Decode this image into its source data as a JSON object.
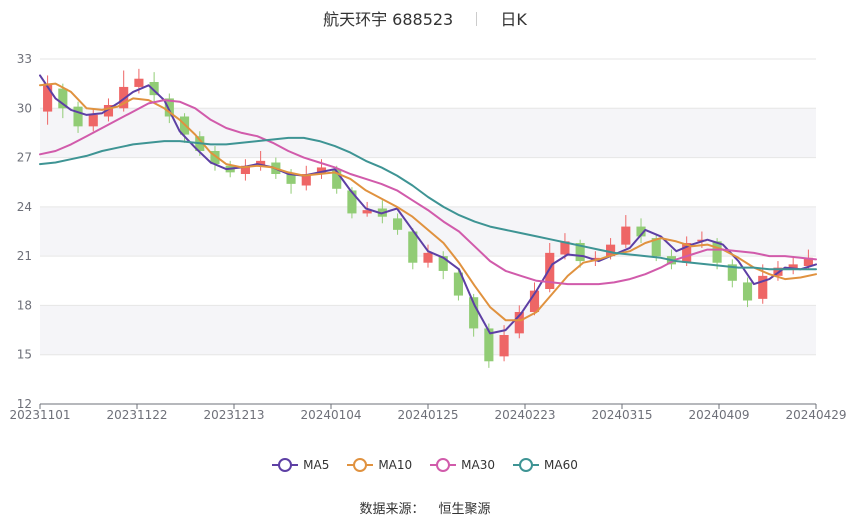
{
  "header": {
    "title": "航天环宇 688523",
    "period": "日K"
  },
  "source": {
    "label": "数据来源：",
    "provider": "恒生聚源"
  },
  "colors": {
    "up": "#ee6666",
    "down": "#91cc75",
    "ma5": "#5d3fa4",
    "ma10": "#e0923f",
    "ma30": "#d15bab",
    "ma60": "#3e9494",
    "band": "#f5f5f8",
    "grid": "#e6e6e6",
    "axis": "#6e7079"
  },
  "chart_data": {
    "type": "candlestick",
    "ylim": [
      12,
      33
    ],
    "yticks": [
      12,
      15,
      18,
      21,
      24,
      27,
      30,
      33
    ],
    "xlim": [
      "20231101",
      "20240429"
    ],
    "xticks": [
      "20231101",
      "20231122",
      "20231213",
      "20240104",
      "20240125",
      "20240223",
      "20240315",
      "20240409",
      "20240429"
    ],
    "grid": true,
    "legend_position": "bottom",
    "series": [
      {
        "name": "MA5",
        "color": "#5d3fa4",
        "values": [
          32.0,
          30.6,
          29.9,
          29.6,
          29.7,
          30.3,
          31.0,
          31.4,
          30.5,
          28.6,
          27.6,
          26.7,
          26.3,
          26.4,
          26.6,
          26.4,
          26.0,
          25.9,
          26.1,
          26.3,
          25.0,
          23.9,
          23.6,
          23.9,
          22.6,
          21.3,
          20.9,
          20.2,
          18.0,
          16.3,
          16.5,
          17.5,
          18.9,
          20.5,
          21.1,
          21.0,
          20.7,
          21.1,
          21.5,
          22.6,
          22.2,
          21.3,
          21.7,
          22.0,
          21.7,
          20.7,
          19.3,
          19.6,
          20.3,
          20.2,
          20.5
        ]
      },
      {
        "name": "MA10",
        "color": "#e0923f",
        "values": [
          31.4,
          31.5,
          31.0,
          30.0,
          29.9,
          30.1,
          30.6,
          30.5,
          30.0,
          29.3,
          28.4,
          27.3,
          26.6,
          26.4,
          26.5,
          26.4,
          26.1,
          25.9,
          26.0,
          26.1,
          25.7,
          25.0,
          24.5,
          24.0,
          23.4,
          22.6,
          21.8,
          20.6,
          19.2,
          17.9,
          17.1,
          17.1,
          17.6,
          18.7,
          19.8,
          20.6,
          20.8,
          21.1,
          21.3,
          21.8,
          22.1,
          21.9,
          21.6,
          21.7,
          21.4,
          20.9,
          20.3,
          19.9,
          19.6,
          19.7,
          19.9
        ]
      },
      {
        "name": "MA30",
        "color": "#d15bab",
        "values": [
          27.2,
          27.4,
          27.8,
          28.3,
          28.8,
          29.3,
          29.8,
          30.3,
          30.5,
          30.4,
          30.0,
          29.3,
          28.8,
          28.5,
          28.3,
          27.9,
          27.4,
          27.0,
          26.7,
          26.4,
          26.0,
          25.7,
          25.4,
          25.0,
          24.4,
          23.8,
          23.1,
          22.5,
          21.6,
          20.7,
          20.1,
          19.8,
          19.5,
          19.4,
          19.3,
          19.3,
          19.3,
          19.4,
          19.6,
          19.9,
          20.3,
          20.8,
          21.1,
          21.4,
          21.4,
          21.3,
          21.2,
          21.0,
          21.0,
          20.9,
          20.8
        ]
      },
      {
        "name": "MA60",
        "color": "#3e9494",
        "values": [
          26.6,
          26.7,
          26.9,
          27.1,
          27.4,
          27.6,
          27.8,
          27.9,
          28.0,
          28.0,
          27.9,
          27.8,
          27.8,
          27.9,
          28.0,
          28.1,
          28.2,
          28.2,
          28.0,
          27.7,
          27.3,
          26.8,
          26.4,
          25.9,
          25.3,
          24.6,
          24.0,
          23.5,
          23.1,
          22.8,
          22.6,
          22.4,
          22.2,
          22.0,
          21.8,
          21.6,
          21.4,
          21.2,
          21.1,
          21.0,
          20.9,
          20.7,
          20.6,
          20.5,
          20.4,
          20.3,
          20.3,
          20.2,
          20.2,
          20.2,
          20.2
        ]
      }
    ],
    "candles": [
      {
        "o": 29.8,
        "c": 31.5,
        "h": 32.0,
        "l": 29.0
      },
      {
        "o": 31.2,
        "c": 30.0,
        "h": 31.5,
        "l": 29.4
      },
      {
        "o": 30.1,
        "c": 28.9,
        "h": 30.4,
        "l": 28.5
      },
      {
        "o": 28.9,
        "c": 29.6,
        "h": 30.0,
        "l": 28.6
      },
      {
        "o": 29.5,
        "c": 30.2,
        "h": 30.6,
        "l": 29.2
      },
      {
        "o": 30.0,
        "c": 31.3,
        "h": 32.3,
        "l": 29.8
      },
      {
        "o": 31.3,
        "c": 31.8,
        "h": 32.4,
        "l": 30.9
      },
      {
        "o": 31.6,
        "c": 30.8,
        "h": 32.2,
        "l": 30.4
      },
      {
        "o": 30.6,
        "c": 29.5,
        "h": 30.9,
        "l": 29.1
      },
      {
        "o": 29.5,
        "c": 28.4,
        "h": 29.7,
        "l": 27.9
      },
      {
        "o": 28.3,
        "c": 27.4,
        "h": 28.6,
        "l": 27.1
      },
      {
        "o": 27.4,
        "c": 26.6,
        "h": 27.7,
        "l": 26.2
      },
      {
        "o": 26.5,
        "c": 26.1,
        "h": 26.8,
        "l": 25.8
      },
      {
        "o": 26.0,
        "c": 26.5,
        "h": 26.9,
        "l": 25.6
      },
      {
        "o": 26.5,
        "c": 26.8,
        "h": 27.4,
        "l": 26.2
      },
      {
        "o": 26.7,
        "c": 26.0,
        "h": 27.0,
        "l": 25.7
      },
      {
        "o": 26.0,
        "c": 25.4,
        "h": 26.3,
        "l": 24.8
      },
      {
        "o": 25.3,
        "c": 26.0,
        "h": 26.5,
        "l": 25.0
      },
      {
        "o": 26.0,
        "c": 26.4,
        "h": 26.9,
        "l": 25.7
      },
      {
        "o": 26.3,
        "c": 25.1,
        "h": 26.5,
        "l": 24.8
      },
      {
        "o": 25.0,
        "c": 23.6,
        "h": 25.2,
        "l": 23.3
      },
      {
        "o": 23.6,
        "c": 23.8,
        "h": 24.3,
        "l": 23.4
      },
      {
        "o": 23.9,
        "c": 23.4,
        "h": 24.4,
        "l": 23.0
      },
      {
        "o": 23.3,
        "c": 22.6,
        "h": 23.6,
        "l": 22.3
      },
      {
        "o": 22.5,
        "c": 20.6,
        "h": 22.7,
        "l": 20.2
      },
      {
        "o": 20.6,
        "c": 21.2,
        "h": 21.7,
        "l": 20.3
      },
      {
        "o": 21.0,
        "c": 20.1,
        "h": 21.3,
        "l": 19.6
      },
      {
        "o": 20.0,
        "c": 18.6,
        "h": 20.2,
        "l": 18.3
      },
      {
        "o": 18.5,
        "c": 16.6,
        "h": 18.7,
        "l": 16.1
      },
      {
        "o": 16.6,
        "c": 14.6,
        "h": 16.9,
        "l": 14.2
      },
      {
        "o": 14.9,
        "c": 16.2,
        "h": 16.8,
        "l": 14.6
      },
      {
        "o": 16.3,
        "c": 17.6,
        "h": 18.0,
        "l": 16.0
      },
      {
        "o": 17.6,
        "c": 18.9,
        "h": 19.4,
        "l": 17.4
      },
      {
        "o": 19.0,
        "c": 21.2,
        "h": 21.8,
        "l": 18.8
      },
      {
        "o": 21.1,
        "c": 21.9,
        "h": 22.4,
        "l": 20.8
      },
      {
        "o": 21.8,
        "c": 20.7,
        "h": 22.0,
        "l": 20.3
      },
      {
        "o": 20.7,
        "c": 20.9,
        "h": 21.3,
        "l": 20.4
      },
      {
        "o": 21.0,
        "c": 21.7,
        "h": 22.1,
        "l": 20.8
      },
      {
        "o": 21.7,
        "c": 22.8,
        "h": 23.5,
        "l": 21.5
      },
      {
        "o": 22.8,
        "c": 22.2,
        "h": 23.3,
        "l": 21.8
      },
      {
        "o": 22.1,
        "c": 21.0,
        "h": 22.3,
        "l": 20.7
      },
      {
        "o": 21.0,
        "c": 20.5,
        "h": 21.4,
        "l": 20.2
      },
      {
        "o": 20.6,
        "c": 21.8,
        "h": 22.2,
        "l": 20.4
      },
      {
        "o": 21.9,
        "c": 22.0,
        "h": 22.5,
        "l": 21.5
      },
      {
        "o": 21.9,
        "c": 20.6,
        "h": 22.1,
        "l": 20.2
      },
      {
        "o": 20.5,
        "c": 19.5,
        "h": 20.8,
        "l": 19.1
      },
      {
        "o": 19.4,
        "c": 18.3,
        "h": 19.7,
        "l": 17.9
      },
      {
        "o": 18.4,
        "c": 19.8,
        "h": 20.5,
        "l": 18.1
      },
      {
        "o": 19.8,
        "c": 20.3,
        "h": 20.7,
        "l": 19.5
      },
      {
        "o": 20.2,
        "c": 20.5,
        "h": 21.0,
        "l": 19.9
      },
      {
        "o": 20.4,
        "c": 20.9,
        "h": 21.4,
        "l": 20.2
      }
    ]
  }
}
